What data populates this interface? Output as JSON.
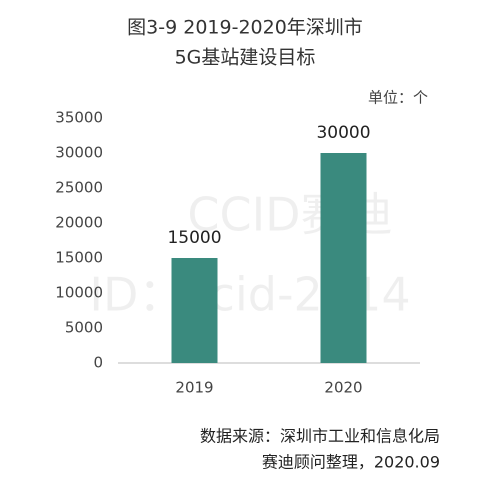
{
  "chart_data": {
    "type": "bar",
    "title": "图3-9  2019-2020年深圳市",
    "subtitle": "5G基站建设目标",
    "unit_label": "单位：个",
    "categories": [
      "2019",
      "2020"
    ],
    "values": [
      15000,
      30000
    ],
    "color": "#3a8a7e",
    "ylim": [
      0,
      35000
    ],
    "yticks": [
      0,
      5000,
      10000,
      15000,
      20000,
      25000,
      30000,
      35000
    ],
    "grid": false,
    "source": [
      "数据来源：深圳市工业和信息化局",
      "赛迪顾问整理，2020.09"
    ],
    "watermark": [
      "CCID赛迪",
      "ID：ccid-2014"
    ]
  }
}
